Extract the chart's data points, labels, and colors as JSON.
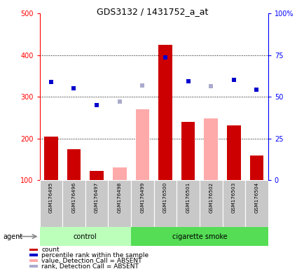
{
  "title": "GDS3132 / 1431752_a_at",
  "samples": [
    "GSM176495",
    "GSM176496",
    "GSM176497",
    "GSM176498",
    "GSM176499",
    "GSM176500",
    "GSM176501",
    "GSM176502",
    "GSM176503",
    "GSM176504"
  ],
  "groups": [
    "control",
    "control",
    "control",
    "control",
    "cigarette smoke",
    "cigarette smoke",
    "cigarette smoke",
    "cigarette smoke",
    "cigarette smoke",
    "cigarette smoke"
  ],
  "count_present": [
    205,
    175,
    122,
    null,
    null,
    425,
    240,
    null,
    232,
    160
  ],
  "count_absent": [
    null,
    null,
    null,
    130,
    270,
    null,
    null,
    248,
    null,
    null
  ],
  "rank_present": [
    335,
    320,
    280,
    null,
    null,
    395,
    338,
    null,
    340,
    318
  ],
  "rank_absent": [
    null,
    null,
    null,
    288,
    328,
    null,
    null,
    325,
    null,
    null
  ],
  "ylim_left": [
    100,
    500
  ],
  "yticks_left": [
    100,
    200,
    300,
    400,
    500
  ],
  "yticks_right_positions": [
    100,
    200,
    300,
    400,
    500
  ],
  "ytick_labels_right": [
    "0",
    "25",
    "50",
    "75",
    "100%"
  ],
  "bar_width": 0.6,
  "color_count_present": "#cc0000",
  "color_count_absent": "#ffaaaa",
  "color_rank_present": "#0000cc",
  "color_rank_absent": "#aaaacc",
  "color_control_bg": "#bbffbb",
  "color_cigarette_bg": "#55dd55",
  "color_label_bg": "#c8c8c8",
  "control_label": "control",
  "smoke_label": "cigarette smoke",
  "agent_label": "agent",
  "n_control": 4,
  "legend_items": [
    {
      "color": "#cc0000",
      "label": "count"
    },
    {
      "color": "#0000cc",
      "label": "percentile rank within the sample"
    },
    {
      "color": "#ffaaaa",
      "label": "value, Detection Call = ABSENT"
    },
    {
      "color": "#aaaacc",
      "label": "rank, Detection Call = ABSENT"
    }
  ]
}
